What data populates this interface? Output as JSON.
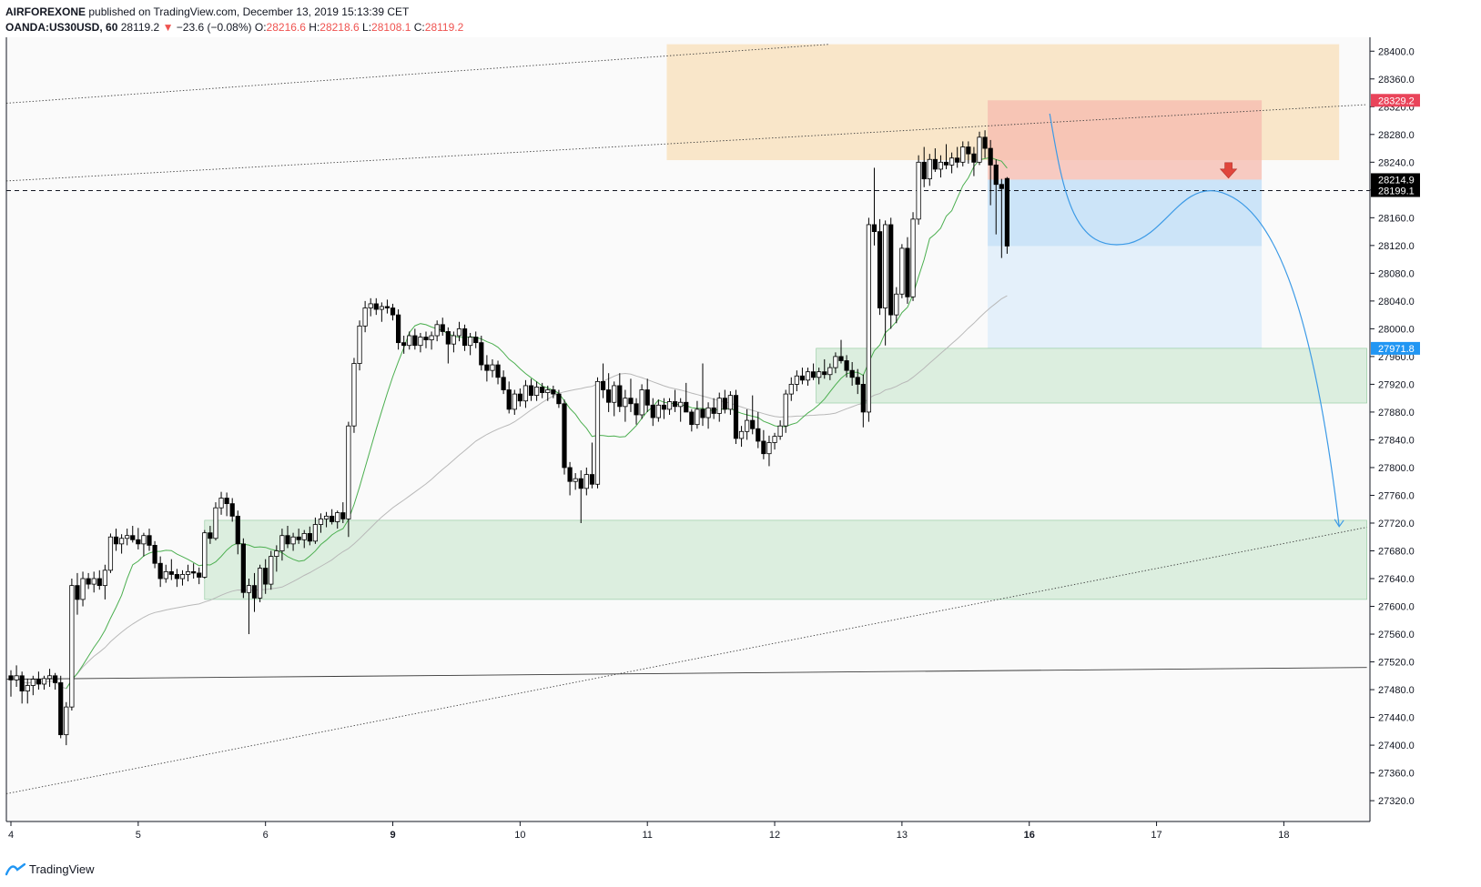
{
  "header": {
    "author": "AIRFOREXONE",
    "published": "published on TradingView.com, December 13, 2019 15:13:39 CET",
    "symbol": "OANDA:US30USD, 60",
    "last": "28119.2",
    "change_arrow": "▼",
    "change": "−23.6 (−0.08%)",
    "o_label": "O:",
    "o_value": "28216.6",
    "h_label": "H:",
    "h_value": "28218.6",
    "l_label": "L:",
    "l_value": "28108.1",
    "c_label": "C:",
    "c_value": "28119.2"
  },
  "footer": {
    "brand": "TradingView",
    "logo_icon": "tradingview-logo-icon"
  },
  "colors": {
    "up": "#ffffff",
    "down": "#000000",
    "wick": "#000000",
    "orange_zone": "#f9d9a8",
    "stop_zone": "#f5b9ae",
    "target_zone": "#bcdcf7",
    "green_zone": "#b7dfbf",
    "sell_arrow": "#e0463c",
    "path": "#3c9ae6",
    "badge_red": "#e9445a",
    "badge_blue": "#2196f3",
    "badge_black": "#000000"
  },
  "chart_data": {
    "type": "candlestick",
    "symbol": "OANDA:US30USD",
    "interval": "60",
    "ylim": [
      27290,
      28420
    ],
    "y_ticks": [
      28400,
      28360,
      28320,
      28280,
      28240,
      28200,
      28160,
      28120,
      28080,
      28040,
      28000,
      27960,
      27920,
      27880,
      27840,
      27800,
      27760,
      27720,
      27680,
      27640,
      27600,
      27560,
      27520,
      27480,
      27440,
      27400,
      27360,
      27320
    ],
    "y_tick_labels": [
      "28400.0",
      "28360.0",
      "28320.0",
      "28280.0",
      "28240.0",
      "28200.0",
      "28160.0",
      "28120.0",
      "28080.0",
      "28040.0",
      "28000.0",
      "27960.0",
      "27920.0",
      "27880.0",
      "27840.0",
      "27800.0",
      "27760.0",
      "27720.0",
      "27680.0",
      "27640.0",
      "27600.0",
      "27560.0",
      "27520.0",
      "27480.0",
      "27440.0",
      "27400.0",
      "27360.0",
      "27320.0"
    ],
    "x_ticks": [
      {
        "label": "4",
        "bold": false,
        "bar": 0
      },
      {
        "label": "5",
        "bold": false,
        "bar": 23
      },
      {
        "label": "6",
        "bold": false,
        "bar": 46
      },
      {
        "label": "9",
        "bold": true,
        "bar": 69
      },
      {
        "label": "10",
        "bold": false,
        "bar": 92
      },
      {
        "label": "11",
        "bold": false,
        "bar": 115
      },
      {
        "label": "12",
        "bold": false,
        "bar": 138
      },
      {
        "label": "13",
        "bold": false,
        "bar": 161
      },
      {
        "label": "16",
        "bold": true,
        "bar": 184
      },
      {
        "label": "17",
        "bold": false,
        "bar": 207
      },
      {
        "label": "18",
        "bold": false,
        "bar": 230
      }
    ],
    "price_badges": [
      {
        "value": "28329.2",
        "price": 28329.2,
        "color": "#e9445a"
      },
      {
        "value": "28214.9",
        "price": 28214.9,
        "color": "#000000"
      },
      {
        "value": "28199.1",
        "price": 28199.1,
        "color": "#000000"
      },
      {
        "value": "27971.8",
        "price": 27971.8,
        "color": "#2196f3"
      }
    ],
    "horizontal_line": {
      "price": 28199.1,
      "style": "dashed"
    },
    "zones": [
      {
        "kind": "supply",
        "bar_from": 118.5,
        "bar_to": 240,
        "price_from": 28243,
        "price_to": 28410,
        "color": "#f9d9a8"
      },
      {
        "kind": "stop",
        "bar_from": 176.5,
        "bar_to": 226,
        "price_from": 28214.9,
        "price_to": 28329.2,
        "color": "#f5b9ae"
      },
      {
        "kind": "target",
        "bar_from": 176.5,
        "bar_to": 226,
        "price_from": 28119.2,
        "price_to": 28214.9,
        "color": "#bcdcf7"
      },
      {
        "kind": "target-extended",
        "bar_from": 176.5,
        "bar_to": 226,
        "price_from": 27971.8,
        "price_to": 28119.2,
        "color": "#dcecfa"
      },
      {
        "kind": "demand",
        "bar_from": 145.5,
        "bar_to": 245,
        "price_from": 27893,
        "price_to": 27971.8,
        "color": "#b7dfbf"
      },
      {
        "kind": "demand",
        "bar_from": 35,
        "bar_to": 245,
        "price_from": 27610,
        "price_to": 27724,
        "color": "#b7dfbf"
      }
    ],
    "trendlines": [
      {
        "from": [
          0,
          28325
        ],
        "to": [
          148,
          28410
        ],
        "style": "dotted"
      },
      {
        "from": [
          0,
          28213
        ],
        "to": [
          245,
          28323
        ],
        "style": "dotted"
      },
      {
        "from": [
          0,
          27330
        ],
        "to": [
          245,
          27714
        ],
        "style": "dotted"
      },
      {
        "from": [
          0,
          27495
        ],
        "to": [
          245,
          27512
        ],
        "style": "solid"
      }
    ],
    "projection_path": {
      "start": [
        187.7,
        28310
      ],
      "dip": [
        202,
        28123
      ],
      "peak": [
        218,
        28198
      ],
      "end": [
        240,
        27715
      ]
    },
    "sell_signal": {
      "bar": 220,
      "price": 28217
    },
    "candles": [
      [
        27500,
        27508,
        27470,
        27494
      ],
      [
        27494,
        27515,
        27484,
        27500
      ],
      [
        27500,
        27506,
        27460,
        27478
      ],
      [
        27478,
        27496,
        27460,
        27486
      ],
      [
        27486,
        27500,
        27472,
        27495
      ],
      [
        27495,
        27506,
        27480,
        27488
      ],
      [
        27488,
        27500,
        27480,
        27496
      ],
      [
        27496,
        27510,
        27484,
        27500
      ],
      [
        27500,
        27504,
        27480,
        27490
      ],
      [
        27490,
        27500,
        27410,
        27415
      ],
      [
        27415,
        27462,
        27400,
        27455
      ],
      [
        27455,
        27640,
        27450,
        27630
      ],
      [
        27630,
        27648,
        27588,
        27610
      ],
      [
        27610,
        27650,
        27600,
        27640
      ],
      [
        27640,
        27648,
        27625,
        27632
      ],
      [
        27632,
        27650,
        27620,
        27640
      ],
      [
        27640,
        27652,
        27624,
        27630
      ],
      [
        27630,
        27660,
        27610,
        27652
      ],
      [
        27652,
        27705,
        27648,
        27700
      ],
      [
        27700,
        27712,
        27680,
        27690
      ],
      [
        27690,
        27704,
        27676,
        27698
      ],
      [
        27698,
        27712,
        27688,
        27702
      ],
      [
        27702,
        27716,
        27692,
        27696
      ],
      [
        27696,
        27713,
        27682,
        27690
      ],
      [
        27690,
        27706,
        27672,
        27702
      ],
      [
        27702,
        27712,
        27680,
        27688
      ],
      [
        27688,
        27694,
        27655,
        27662
      ],
      [
        27662,
        27672,
        27628,
        27640
      ],
      [
        27640,
        27660,
        27634,
        27650
      ],
      [
        27650,
        27668,
        27638,
        27646
      ],
      [
        27646,
        27654,
        27628,
        27640
      ],
      [
        27640,
        27652,
        27630,
        27646
      ],
      [
        27646,
        27660,
        27636,
        27650
      ],
      [
        27650,
        27662,
        27640,
        27648
      ],
      [
        27648,
        27656,
        27632,
        27642
      ],
      [
        27642,
        27710,
        27640,
        27706
      ],
      [
        27706,
        27716,
        27690,
        27698
      ],
      [
        27698,
        27750,
        27695,
        27742
      ],
      [
        27742,
        27765,
        27732,
        27756
      ],
      [
        27756,
        27764,
        27730,
        27748
      ],
      [
        27748,
        27756,
        27722,
        27730
      ],
      [
        27730,
        27738,
        27675,
        27690
      ],
      [
        27690,
        27698,
        27612,
        27620
      ],
      [
        27620,
        27640,
        27560,
        27630
      ],
      [
        27630,
        27648,
        27592,
        27612
      ],
      [
        27612,
        27660,
        27606,
        27655
      ],
      [
        27655,
        27668,
        27618,
        27632
      ],
      [
        27632,
        27680,
        27624,
        27672
      ],
      [
        27672,
        27688,
        27650,
        27680
      ],
      [
        27680,
        27712,
        27666,
        27702
      ],
      [
        27702,
        27716,
        27684,
        27690
      ],
      [
        27690,
        27706,
        27680,
        27700
      ],
      [
        27700,
        27712,
        27690,
        27696
      ],
      [
        27696,
        27710,
        27684,
        27705
      ],
      [
        27705,
        27715,
        27688,
        27694
      ],
      [
        27694,
        27728,
        27690,
        27718
      ],
      [
        27718,
        27734,
        27706,
        27726
      ],
      [
        27726,
        27736,
        27714,
        27730
      ],
      [
        27730,
        27740,
        27718,
        27722
      ],
      [
        27722,
        27738,
        27712,
        27735
      ],
      [
        27735,
        27750,
        27720,
        27726
      ],
      [
        27726,
        27866,
        27700,
        27860
      ],
      [
        27860,
        27958,
        27850,
        27950
      ],
      [
        27950,
        28012,
        27940,
        28004
      ],
      [
        28004,
        28040,
        27995,
        28030
      ],
      [
        28030,
        28044,
        28018,
        28036
      ],
      [
        28036,
        28044,
        28020,
        28028
      ],
      [
        28028,
        28038,
        28010,
        28032
      ],
      [
        28032,
        28042,
        28022,
        28030
      ],
      [
        28030,
        28036,
        28012,
        28020
      ],
      [
        28020,
        28028,
        27970,
        27980
      ],
      [
        27980,
        27990,
        27964,
        27976
      ],
      [
        27976,
        27996,
        27970,
        27990
      ],
      [
        27990,
        28000,
        27970,
        27976
      ],
      [
        27976,
        27994,
        27966,
        27988
      ],
      [
        27988,
        27996,
        27972,
        27984
      ],
      [
        27984,
        27996,
        27970,
        27990
      ],
      [
        27990,
        28012,
        27982,
        28006
      ],
      [
        28006,
        28016,
        27990,
        27996
      ],
      [
        27996,
        28002,
        27950,
        27978
      ],
      [
        27978,
        27996,
        27966,
        27990
      ],
      [
        27990,
        28010,
        27982,
        28000
      ],
      [
        28000,
        28006,
        27968,
        27976
      ],
      [
        27976,
        27994,
        27962,
        27988
      ],
      [
        27988,
        27996,
        27972,
        27980
      ],
      [
        27980,
        27990,
        27940,
        27948
      ],
      [
        27948,
        27962,
        27924,
        27940
      ],
      [
        27940,
        27956,
        27930,
        27948
      ],
      [
        27948,
        27954,
        27920,
        27930
      ],
      [
        27930,
        27940,
        27906,
        27912
      ],
      [
        27912,
        27924,
        27878,
        27884
      ],
      [
        27884,
        27912,
        27876,
        27906
      ],
      [
        27906,
        27914,
        27888,
        27896
      ],
      [
        27896,
        27926,
        27886,
        27918
      ],
      [
        27918,
        27928,
        27896,
        27904
      ],
      [
        27904,
        27924,
        27896,
        27916
      ],
      [
        27916,
        27922,
        27900,
        27908
      ],
      [
        27908,
        27918,
        27896,
        27912
      ],
      [
        27912,
        27918,
        27900,
        27906
      ],
      [
        27906,
        27912,
        27886,
        27892
      ],
      [
        27892,
        27898,
        27790,
        27800
      ],
      [
        27800,
        27808,
        27760,
        27780
      ],
      [
        27780,
        27792,
        27768,
        27784
      ],
      [
        27784,
        27796,
        27720,
        27770
      ],
      [
        27770,
        27800,
        27760,
        27790
      ],
      [
        27790,
        27836,
        27770,
        27776
      ],
      [
        27776,
        27930,
        27770,
        27924
      ],
      [
        27924,
        27950,
        27900,
        27912
      ],
      [
        27912,
        27936,
        27880,
        27894
      ],
      [
        27894,
        27924,
        27874,
        27918
      ],
      [
        27918,
        27936,
        27880,
        27888
      ],
      [
        27888,
        27912,
        27866,
        27900
      ],
      [
        27900,
        27928,
        27880,
        27892
      ],
      [
        27892,
        27900,
        27862,
        27876
      ],
      [
        27876,
        27920,
        27870,
        27912
      ],
      [
        27912,
        27928,
        27880,
        27890
      ],
      [
        27890,
        27900,
        27860,
        27872
      ],
      [
        27872,
        27898,
        27866,
        27890
      ],
      [
        27890,
        27900,
        27870,
        27884
      ],
      [
        27884,
        27900,
        27876,
        27895
      ],
      [
        27895,
        27912,
        27880,
        27888
      ],
      [
        27888,
        27900,
        27866,
        27894
      ],
      [
        27894,
        27922,
        27880,
        27880
      ],
      [
        27880,
        27884,
        27852,
        27862
      ],
      [
        27862,
        27896,
        27856,
        27884
      ],
      [
        27884,
        27950,
        27860,
        27872
      ],
      [
        27872,
        27894,
        27856,
        27886
      ],
      [
        27886,
        27900,
        27870,
        27878
      ],
      [
        27878,
        27908,
        27866,
        27900
      ],
      [
        27900,
        27912,
        27878,
        27884
      ],
      [
        27884,
        27910,
        27876,
        27904
      ],
      [
        27904,
        27912,
        27834,
        27842
      ],
      [
        27842,
        27860,
        27830,
        27852
      ],
      [
        27852,
        27884,
        27840,
        27868
      ],
      [
        27868,
        27904,
        27848,
        27856
      ],
      [
        27856,
        27880,
        27828,
        27838
      ],
      [
        27838,
        27854,
        27812,
        27820
      ],
      [
        27820,
        27846,
        27802,
        27836
      ],
      [
        27836,
        27850,
        27826,
        27845
      ],
      [
        27845,
        27868,
        27840,
        27860
      ],
      [
        27860,
        27912,
        27850,
        27906
      ],
      [
        27906,
        27930,
        27896,
        27920
      ],
      [
        27920,
        27940,
        27910,
        27932
      ],
      [
        27932,
        27944,
        27920,
        27926
      ],
      [
        27926,
        27944,
        27918,
        27938
      ],
      [
        27938,
        27950,
        27926,
        27930
      ],
      [
        27930,
        27944,
        27920,
        27938
      ],
      [
        27938,
        27956,
        27928,
        27934
      ],
      [
        27934,
        27950,
        27926,
        27944
      ],
      [
        27944,
        27966,
        27936,
        27960
      ],
      [
        27960,
        27984,
        27950,
        27954
      ],
      [
        27954,
        27962,
        27930,
        27940
      ],
      [
        27940,
        27952,
        27918,
        27930
      ],
      [
        27930,
        27942,
        27906,
        27920
      ],
      [
        27920,
        27934,
        27858,
        27880
      ],
      [
        27880,
        28160,
        27866,
        28150
      ],
      [
        28150,
        28232,
        28120,
        28140
      ],
      [
        28140,
        28158,
        28020,
        28030
      ],
      [
        28030,
        28156,
        27976,
        28150
      ],
      [
        28150,
        28160,
        28000,
        28020
      ],
      [
        28020,
        28060,
        28008,
        28050
      ],
      [
        28050,
        28122,
        28044,
        28116
      ],
      [
        28116,
        28132,
        28036,
        28046
      ],
      [
        28046,
        28168,
        28040,
        28158
      ],
      [
        28158,
        28250,
        28150,
        28240
      ],
      [
        28240,
        28262,
        28204,
        28216
      ],
      [
        28216,
        28252,
        28206,
        28244
      ],
      [
        28244,
        28260,
        28226,
        28230
      ],
      [
        28230,
        28250,
        28218,
        28240
      ],
      [
        28240,
        28266,
        28230,
        28236
      ],
      [
        28236,
        28254,
        28224,
        28246
      ],
      [
        28246,
        28262,
        28232,
        28240
      ],
      [
        28240,
        28270,
        28234,
        28262
      ],
      [
        28262,
        28270,
        28238,
        28252
      ],
      [
        28252,
        28262,
        28220,
        28240
      ],
      [
        28240,
        28284,
        28236,
        28276
      ],
      [
        28276,
        28286,
        28246,
        28260
      ],
      [
        28260,
        28272,
        28178,
        28236
      ],
      [
        28236,
        28244,
        28136,
        28208
      ],
      [
        28208,
        28216,
        28102,
        28202
      ],
      [
        28216.6,
        28218.6,
        28108.1,
        28119.2
      ]
    ]
  }
}
